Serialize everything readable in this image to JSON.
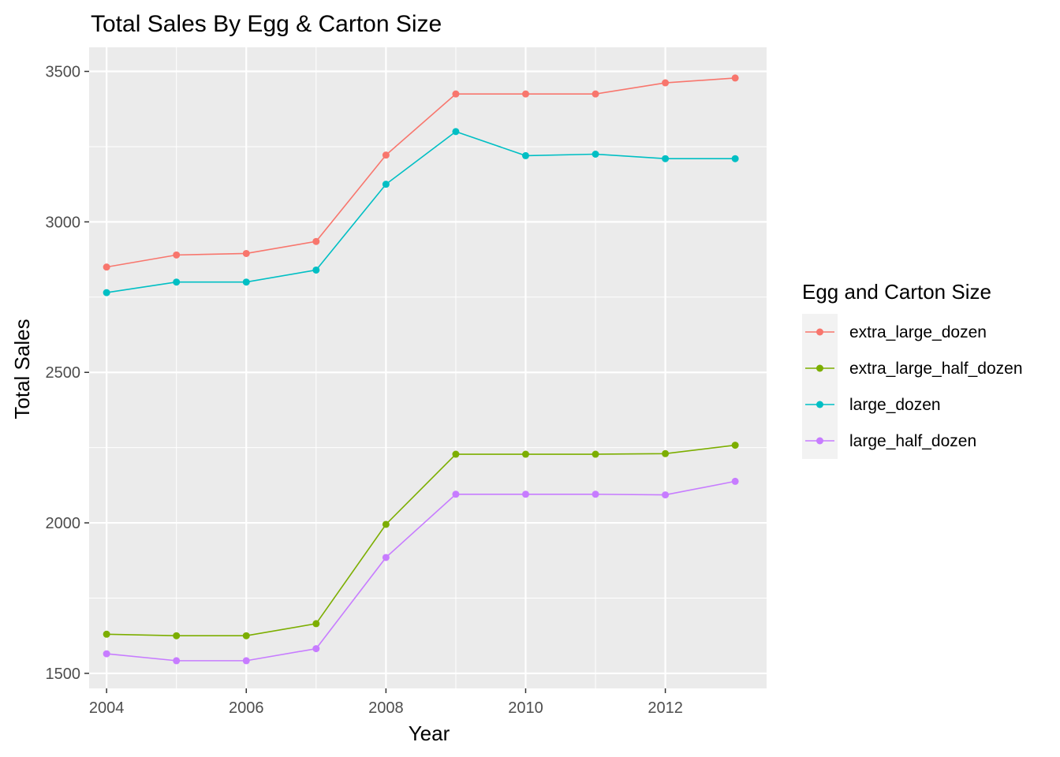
{
  "chart_data": {
    "type": "line",
    "title": "Total Sales By Egg & Carton Size",
    "xlabel": "Year",
    "ylabel": "Total Sales",
    "x": [
      2004,
      2005,
      2006,
      2007,
      2008,
      2009,
      2010,
      2011,
      2012,
      2013
    ],
    "xlim": [
      2003.75,
      2013.45
    ],
    "ylim": [
      1450,
      3580
    ],
    "x_ticks": [
      "2004",
      "2006",
      "2008",
      "2010",
      "2012"
    ],
    "x_tick_values": [
      2004,
      2006,
      2008,
      2010,
      2012
    ],
    "y_ticks": [
      "1500",
      "2000",
      "2500",
      "3000",
      "3500"
    ],
    "y_tick_values": [
      1500,
      2000,
      2500,
      3000,
      3500
    ],
    "grid": true,
    "legend": {
      "title": "Egg and Carton Size",
      "position": "right"
    },
    "series": [
      {
        "name": "extra_large_dozen",
        "color": "#F8766D",
        "values": [
          2850,
          2890,
          2895,
          2935,
          3222,
          3425,
          3425,
          3425,
          3462,
          3478
        ]
      },
      {
        "name": "extra_large_half_dozen",
        "color": "#7CAE00",
        "values": [
          1630,
          1625,
          1625,
          1665,
          1995,
          2228,
          2228,
          2228,
          2230,
          2258
        ]
      },
      {
        "name": "large_dozen",
        "color": "#00BFC4",
        "values": [
          2765,
          2800,
          2800,
          2840,
          3125,
          3300,
          3220,
          3225,
          3210,
          3210
        ]
      },
      {
        "name": "large_half_dozen",
        "color": "#C77CFF",
        "values": [
          1565,
          1542,
          1542,
          1582,
          1885,
          2095,
          2095,
          2095,
          2093,
          2138
        ]
      }
    ]
  }
}
